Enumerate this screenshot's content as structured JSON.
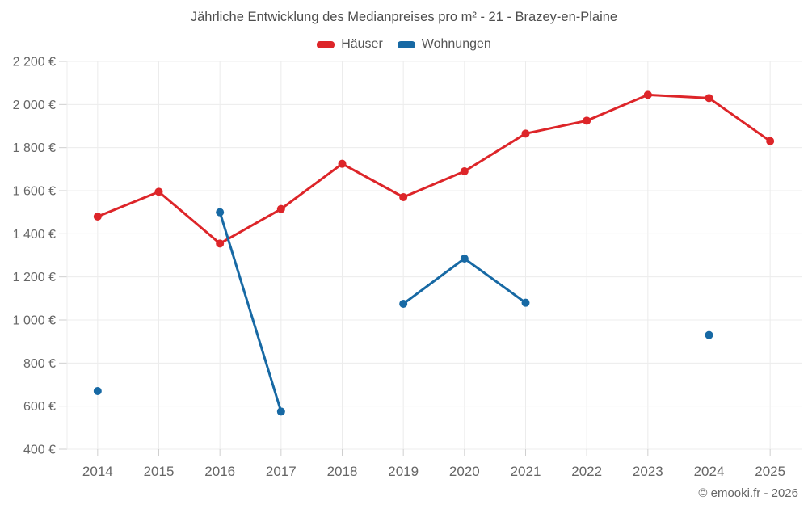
{
  "chart_data": {
    "type": "line",
    "title": "Jährliche Entwicklung des Medianpreises pro m² - 21 - Brazey-en-Plaine",
    "footer": "© emooki.fr - 2026",
    "categories": [
      "2014",
      "2015",
      "2016",
      "2017",
      "2018",
      "2019",
      "2020",
      "2021",
      "2022",
      "2023",
      "2024",
      "2025"
    ],
    "series": [
      {
        "name": "Häuser",
        "color": "#dd2529",
        "values": [
          1480,
          1595,
          1355,
          1515,
          1725,
          1570,
          1690,
          1865,
          1925,
          2045,
          2030,
          1830
        ]
      },
      {
        "name": "Wohnungen",
        "color": "#1769a4",
        "values": [
          670,
          null,
          1500,
          575,
          null,
          1075,
          1285,
          1080,
          null,
          null,
          930,
          null
        ]
      }
    ],
    "ylim": [
      400,
      2200
    ],
    "ytick_step": 200,
    "yticks": [
      {
        "value": 2200,
        "label": "2 200 €"
      },
      {
        "value": 2000,
        "label": "2 000 €"
      },
      {
        "value": 1800,
        "label": "1 800 €"
      },
      {
        "value": 1600,
        "label": "1 600 €"
      },
      {
        "value": 1400,
        "label": "1 400 €"
      },
      {
        "value": 1200,
        "label": "1 200 €"
      },
      {
        "value": 1000,
        "label": "1 000 €"
      },
      {
        "value": 800,
        "label": "800 €"
      },
      {
        "value": 600,
        "label": "600 €"
      },
      {
        "value": 400,
        "label": "400 €"
      }
    ],
    "grid": true,
    "legend_position": "top",
    "colors": {
      "grid_line": "#ececec",
      "tick_mark": "#cfcfcf",
      "axis_text": "#666666",
      "title_text": "#4d4d4d"
    }
  }
}
